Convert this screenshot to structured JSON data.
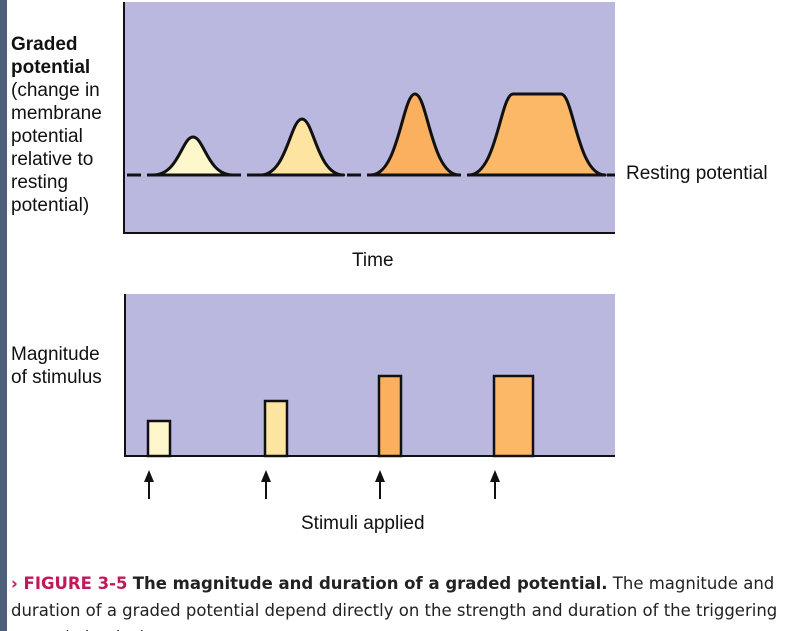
{
  "top_panel": {
    "ylabel_bold_1": "Graded",
    "ylabel_bold_2": "potential",
    "ylabel_lines": [
      "(change in",
      "membrane",
      "potential",
      "relative to",
      "resting",
      "potential)"
    ],
    "baseline_label": "Resting potential",
    "xlabel": "Time",
    "potentials": [
      {
        "height": 1,
        "width": 1,
        "color": "#fff7cc"
      },
      {
        "height": 2,
        "width": 1,
        "color": "#fde4a0"
      },
      {
        "height": 3,
        "width": 1,
        "color": "#fbb05f"
      },
      {
        "height": 3,
        "width": 2,
        "color": "#fbb866"
      }
    ]
  },
  "bottom_panel": {
    "ylabel_lines": [
      "Magnitude",
      "of stimulus"
    ],
    "xlabel": "Stimuli applied",
    "stimuli": [
      {
        "magnitude": 1,
        "duration": 1,
        "color": "#fff7cc"
      },
      {
        "magnitude": 2,
        "duration": 1,
        "color": "#fde4a0"
      },
      {
        "magnitude": 3,
        "duration": 1,
        "color": "#fbb05f"
      },
      {
        "magnitude": 3,
        "duration": 2,
        "color": "#fbb866"
      }
    ]
  },
  "colors": {
    "panel_bg": "#bbb8e0",
    "stroke": "#111111",
    "caption_figure": "#c2185b"
  },
  "caption": {
    "figure_label": "› FIGURE 3-5",
    "title": "The magnitude and duration of a graded potential.",
    "text": "The magnitude and duration of a graded potential depend directly on the strength and duration of the triggering event (stimulus)."
  }
}
